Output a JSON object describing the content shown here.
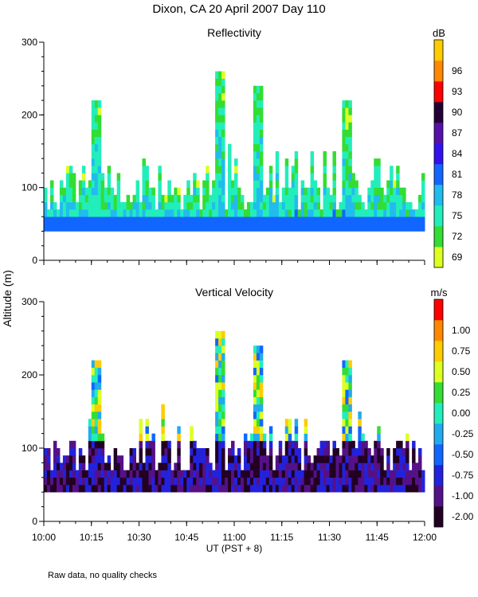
{
  "title": "Dixon, CA 20 April 2007  Day 110",
  "ylabel": "Altitude (m)",
  "xlabel": "UT   (PST + 8)",
  "footnote": "Raw data, no quality checks",
  "chart_data": [
    {
      "type": "heatmap",
      "name": "reflectivity",
      "title": "Reflectivity",
      "xlabel": "UT   (PST + 8)",
      "ylabel": "Altitude (m)",
      "xlim": [
        0,
        120
      ],
      "ylim": [
        0,
        300
      ],
      "x_ticks": [
        0,
        15,
        30,
        45,
        60,
        75,
        90,
        105,
        120
      ],
      "x_tick_labels": [
        "10:00",
        "10:15",
        "10:30",
        "10:45",
        "11:00",
        "11:15",
        "11:30",
        "11:45",
        "12:00"
      ],
      "y_ticks": [
        0,
        100,
        200,
        300
      ],
      "y_tick_labels": [
        "0",
        "100",
        "200",
        "300"
      ],
      "colorbar": {
        "unit": "dB",
        "levels": [
          69,
          72,
          75,
          78,
          81,
          84,
          87,
          90,
          93,
          96
        ],
        "labels": [
          "69",
          "72",
          "75",
          "78",
          "81",
          "84",
          "87",
          "90",
          "93",
          "96"
        ],
        "colors": [
          "#ddff22",
          "#33dd33",
          "#22eebb",
          "#22bbee",
          "#1166ff",
          "#3311ee",
          "#5511aa",
          "#220033",
          "#ff0000",
          "#ff8800",
          "#ffcc00"
        ]
      },
      "data_coverage": {
        "base_altitude_m": 40,
        "typical_top_m": 100,
        "max_top_m": 260,
        "high_echo_columns": [
          {
            "time_min": 16,
            "altitude_range_m": [
              120,
              220
            ]
          },
          {
            "time_min": 55,
            "altitude_range_m": [
              60,
              260
            ]
          },
          {
            "time_min": 67,
            "altitude_range_m": [
              70,
              240
            ]
          },
          {
            "time_min": 95,
            "altitude_range_m": [
              60,
              220
            ]
          }
        ]
      }
    },
    {
      "type": "heatmap",
      "name": "vertical_velocity",
      "title": "Vertical Velocity",
      "xlabel": "UT   (PST + 8)",
      "ylabel": "Altitude (m)",
      "xlim": [
        0,
        120
      ],
      "ylim": [
        0,
        300
      ],
      "x_ticks": [
        0,
        15,
        30,
        45,
        60,
        75,
        90,
        105,
        120
      ],
      "x_tick_labels": [
        "10:00",
        "10:15",
        "10:30",
        "10:45",
        "11:00",
        "11:15",
        "11:30",
        "11:45",
        "12:00"
      ],
      "y_ticks": [
        0,
        100,
        200,
        300
      ],
      "y_tick_labels": [
        "0",
        "100",
        "200",
        "300"
      ],
      "colorbar": {
        "unit": "m/s",
        "levels": [
          -2.0,
          -1.0,
          -0.75,
          -0.5,
          -0.25,
          0.0,
          0.25,
          0.5,
          0.75,
          1.0
        ],
        "labels": [
          "-2.00",
          "-1.00",
          "-0.75",
          "-0.50",
          "-0.25",
          "0.00",
          "0.25",
          "0.50",
          "0.75",
          "1.00"
        ],
        "colors": [
          "#220022",
          "#551188",
          "#2222dd",
          "#1166ff",
          "#22aaee",
          "#22eebb",
          "#33dd33",
          "#ddff22",
          "#ffcc00",
          "#ff8800",
          "#ff0000"
        ]
      },
      "data_coverage": {
        "base_altitude_m": 40,
        "typical_top_m": 100,
        "max_top_m": 260,
        "high_echo_columns": [
          {
            "time_min": 16,
            "altitude_range_m": [
              120,
              220
            ]
          },
          {
            "time_min": 55,
            "altitude_range_m": [
              60,
              260
            ]
          },
          {
            "time_min": 67,
            "altitude_range_m": [
              70,
              240
            ]
          },
          {
            "time_min": 95,
            "altitude_range_m": [
              60,
              220
            ]
          }
        ]
      }
    }
  ]
}
